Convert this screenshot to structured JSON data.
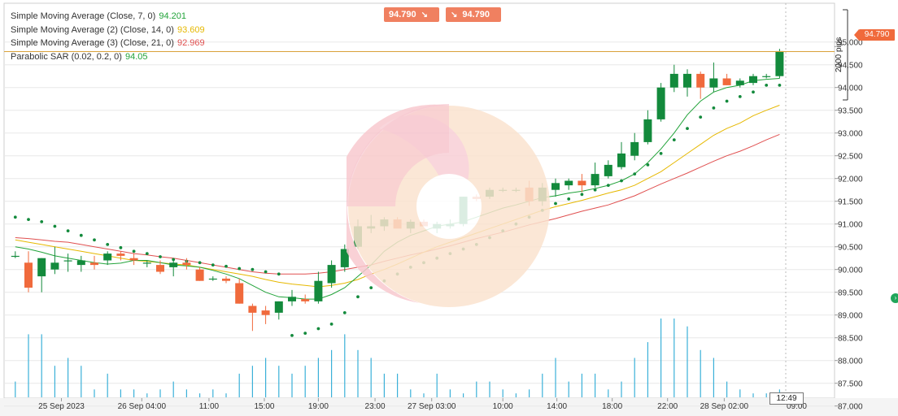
{
  "legend": [
    {
      "label": "Simple Moving Average (Close, 7, 0)",
      "value": "94.201",
      "color": "#22a33a"
    },
    {
      "label": "Simple Moving Average (2) (Close, 14, 0)",
      "value": "93.609",
      "color": "#e6b800"
    },
    {
      "label": "Simple Moving Average (3) (Close, 21, 0)",
      "value": "92.969",
      "color": "#e05050"
    },
    {
      "label": "Parabolic SAR (0.02, 0.2, 0)",
      "value": "94.05",
      "color": "#22a33a"
    }
  ],
  "trade": {
    "sell_price": "94.790",
    "buy_price": "94.790"
  },
  "current_price": "94.790",
  "current_price_value": 94.79,
  "pips_label": "2000 pips",
  "time_marker": "12:49",
  "chart_data": {
    "type": "candlestick",
    "ylim": [
      86.85,
      95.2
    ],
    "y_ticks": [
      "95.000",
      "94.500",
      "94.000",
      "93.500",
      "93.000",
      "92.500",
      "92.000",
      "91.500",
      "91.000",
      "90.500",
      "90.000",
      "89.500",
      "89.000",
      "88.500",
      "88.000",
      "87.500",
      "87.000"
    ],
    "y_tick_values": [
      95,
      94.5,
      94,
      93.5,
      93,
      92.5,
      92,
      91.5,
      91,
      90.5,
      90,
      89.5,
      89,
      88.5,
      88,
      87.5,
      87
    ],
    "x_ticks": [
      {
        "label": "25 Sep 2023",
        "i": 3.5
      },
      {
        "label": "26 Sep 04:00",
        "i": 9.6
      },
      {
        "label": "11:00",
        "i": 14.7
      },
      {
        "label": "15:00",
        "i": 18.9
      },
      {
        "label": "19:00",
        "i": 23.0
      },
      {
        "label": "23:00",
        "i": 27.3
      },
      {
        "label": "27 Sep 03:00",
        "i": 31.6
      },
      {
        "label": "10:00",
        "i": 37.0
      },
      {
        "label": "14:00",
        "i": 41.1
      },
      {
        "label": "18:00",
        "i": 45.3
      },
      {
        "label": "22:00",
        "i": 49.5
      },
      {
        "label": "28 Sep 02:00",
        "i": 53.8
      },
      {
        "label": "09:00",
        "i": 59.3
      }
    ],
    "colors": {
      "up": "#138a3c",
      "down": "#f06a3c",
      "sma7": "#22a33a",
      "sma14": "#e6b800",
      "sma21": "#e05050",
      "sar": "#138a3c",
      "volume": "#3ab0d8",
      "grid": "#e8e8e8",
      "current": "#d9a23a"
    },
    "candles": [
      {
        "o": 90.3,
        "h": 90.4,
        "l": 90.25,
        "c": 90.3
      },
      {
        "o": 90.15,
        "h": 90.4,
        "l": 89.5,
        "c": 89.6
      },
      {
        "o": 89.85,
        "h": 90.25,
        "l": 89.5,
        "c": 90.25
      },
      {
        "o": 90.0,
        "h": 90.5,
        "l": 89.9,
        "c": 90.15
      },
      {
        "o": 90.2,
        "h": 90.35,
        "l": 89.95,
        "c": 90.2
      },
      {
        "o": 90.1,
        "h": 90.3,
        "l": 89.95,
        "c": 90.2
      },
      {
        "o": 90.15,
        "h": 90.3,
        "l": 90.0,
        "c": 90.1
      },
      {
        "o": 90.2,
        "h": 90.4,
        "l": 90.1,
        "c": 90.35
      },
      {
        "o": 90.35,
        "h": 90.4,
        "l": 90.2,
        "c": 90.3
      },
      {
        "o": 90.25,
        "h": 90.35,
        "l": 90.1,
        "c": 90.2
      },
      {
        "o": 90.15,
        "h": 90.2,
        "l": 90.05,
        "c": 90.15
      },
      {
        "o": 90.1,
        "h": 90.2,
        "l": 89.9,
        "c": 89.95
      },
      {
        "o": 90.05,
        "h": 90.2,
        "l": 89.85,
        "c": 90.15
      },
      {
        "o": 90.15,
        "h": 90.25,
        "l": 90.0,
        "c": 90.1
      },
      {
        "o": 90.0,
        "h": 90.05,
        "l": 89.75,
        "c": 89.75
      },
      {
        "o": 89.8,
        "h": 89.85,
        "l": 89.75,
        "c": 89.8
      },
      {
        "o": 89.8,
        "h": 89.85,
        "l": 89.7,
        "c": 89.75
      },
      {
        "o": 89.7,
        "h": 89.8,
        "l": 89.25,
        "c": 89.25
      },
      {
        "o": 89.2,
        "h": 89.25,
        "l": 88.65,
        "c": 89.05
      },
      {
        "o": 89.1,
        "h": 89.2,
        "l": 88.8,
        "c": 89.0
      },
      {
        "o": 89.05,
        "h": 89.3,
        "l": 88.9,
        "c": 89.3
      },
      {
        "o": 89.3,
        "h": 89.55,
        "l": 89.2,
        "c": 89.4
      },
      {
        "o": 89.35,
        "h": 89.45,
        "l": 89.25,
        "c": 89.3
      },
      {
        "o": 89.3,
        "h": 89.95,
        "l": 89.25,
        "c": 89.75
      },
      {
        "o": 89.7,
        "h": 90.2,
        "l": 89.6,
        "c": 90.1
      },
      {
        "o": 90.05,
        "h": 90.55,
        "l": 89.95,
        "c": 90.45
      },
      {
        "o": 90.5,
        "h": 91.1,
        "l": 90.45,
        "c": 90.95
      },
      {
        "o": 90.9,
        "h": 91.2,
        "l": 90.8,
        "c": 90.95
      },
      {
        "o": 90.95,
        "h": 91.15,
        "l": 90.85,
        "c": 91.1
      },
      {
        "o": 91.1,
        "h": 91.15,
        "l": 90.95,
        "c": 90.9
      },
      {
        "o": 90.9,
        "h": 91.1,
        "l": 90.8,
        "c": 91.05
      },
      {
        "o": 91.05,
        "h": 91.1,
        "l": 90.95,
        "c": 90.95
      },
      {
        "o": 90.9,
        "h": 91.05,
        "l": 90.8,
        "c": 91.0
      },
      {
        "o": 90.95,
        "h": 91.1,
        "l": 90.9,
        "c": 91.0
      },
      {
        "o": 91.0,
        "h": 91.6,
        "l": 90.95,
        "c": 91.6
      },
      {
        "o": 91.6,
        "h": 91.65,
        "l": 91.5,
        "c": 91.55
      },
      {
        "o": 91.6,
        "h": 91.8,
        "l": 91.55,
        "c": 91.75
      },
      {
        "o": 91.75,
        "h": 91.8,
        "l": 91.7,
        "c": 91.75
      },
      {
        "o": 91.75,
        "h": 91.8,
        "l": 91.7,
        "c": 91.75
      },
      {
        "o": 91.8,
        "h": 91.95,
        "l": 91.4,
        "c": 91.5
      },
      {
        "o": 91.5,
        "h": 91.9,
        "l": 91.4,
        "c": 91.8
      },
      {
        "o": 91.75,
        "h": 92.0,
        "l": 91.6,
        "c": 91.9
      },
      {
        "o": 91.85,
        "h": 92.0,
        "l": 91.75,
        "c": 91.95
      },
      {
        "o": 91.95,
        "h": 92.1,
        "l": 91.7,
        "c": 91.85
      },
      {
        "o": 91.85,
        "h": 92.35,
        "l": 91.8,
        "c": 92.1
      },
      {
        "o": 92.05,
        "h": 92.4,
        "l": 92.0,
        "c": 92.3
      },
      {
        "o": 92.25,
        "h": 92.8,
        "l": 92.2,
        "c": 92.55
      },
      {
        "o": 92.5,
        "h": 93.0,
        "l": 92.4,
        "c": 92.8
      },
      {
        "o": 92.8,
        "h": 93.5,
        "l": 92.75,
        "c": 93.3
      },
      {
        "o": 93.3,
        "h": 94.1,
        "l": 93.25,
        "c": 94.0
      },
      {
        "o": 94.0,
        "h": 94.5,
        "l": 93.9,
        "c": 94.3
      },
      {
        "o": 94.0,
        "h": 94.4,
        "l": 93.8,
        "c": 94.3
      },
      {
        "o": 94.3,
        "h": 94.35,
        "l": 93.75,
        "c": 94.0
      },
      {
        "o": 94.0,
        "h": 94.55,
        "l": 93.9,
        "c": 94.2
      },
      {
        "o": 94.2,
        "h": 94.3,
        "l": 94.05,
        "c": 94.05
      },
      {
        "o": 94.05,
        "h": 94.2,
        "l": 94.0,
        "c": 94.15
      },
      {
        "o": 94.1,
        "h": 94.3,
        "l": 94.05,
        "c": 94.25
      },
      {
        "o": 94.25,
        "h": 94.3,
        "l": 94.2,
        "c": 94.25
      },
      {
        "o": 94.25,
        "h": 94.85,
        "l": 94.2,
        "c": 94.8
      }
    ],
    "volume": [
      0.2,
      0.8,
      0.8,
      0.4,
      0.5,
      0.4,
      0.1,
      0.3,
      0.1,
      0.1,
      0.05,
      0.1,
      0.2,
      0.1,
      0.05,
      0.1,
      0.05,
      0.3,
      0.4,
      0.5,
      0.4,
      0.3,
      0.4,
      0.5,
      0.6,
      0.8,
      0.6,
      0.5,
      0.3,
      0.3,
      0.1,
      0.05,
      0.3,
      0.1,
      0.05,
      0.2,
      0.2,
      0.1,
      0.05,
      0.1,
      0.3,
      0.5,
      0.2,
      0.3,
      0.3,
      0.1,
      0.2,
      0.5,
      0.7,
      1.0,
      1.0,
      0.9,
      0.6,
      0.5,
      0.2,
      0.1,
      0.05,
      0.05,
      0.1
    ],
    "sma7": [
      90.5,
      90.45,
      90.38,
      90.3,
      90.25,
      90.2,
      90.15,
      90.12,
      90.14,
      90.2,
      90.2,
      90.15,
      90.1,
      90.08,
      90.05,
      89.98,
      89.9,
      89.8,
      89.65,
      89.5,
      89.4,
      89.38,
      89.35,
      89.35,
      89.45,
      89.6,
      89.85,
      90.1,
      90.4,
      90.6,
      90.75,
      90.85,
      90.95,
      91.0,
      91.05,
      91.15,
      91.25,
      91.35,
      91.42,
      91.5,
      91.58,
      91.62,
      91.68,
      91.72,
      91.78,
      91.85,
      91.95,
      92.1,
      92.35,
      92.65,
      93.0,
      93.4,
      93.7,
      93.9,
      94.0,
      94.05,
      94.15,
      94.18,
      94.2
    ],
    "sma14": [
      90.65,
      90.6,
      90.55,
      90.5,
      90.45,
      90.4,
      90.35,
      90.3,
      90.25,
      90.2,
      90.18,
      90.15,
      90.12,
      90.1,
      90.05,
      90.0,
      89.95,
      89.9,
      89.85,
      89.78,
      89.72,
      89.68,
      89.65,
      89.62,
      89.65,
      89.7,
      89.78,
      89.9,
      90.0,
      90.12,
      90.25,
      90.38,
      90.5,
      90.6,
      90.7,
      90.8,
      90.9,
      91.0,
      91.1,
      91.2,
      91.3,
      91.38,
      91.45,
      91.52,
      91.6,
      91.68,
      91.75,
      91.85,
      92.0,
      92.15,
      92.35,
      92.55,
      92.75,
      92.95,
      93.1,
      93.22,
      93.38,
      93.5,
      93.61
    ],
    "sma21": [
      90.7,
      90.68,
      90.65,
      90.62,
      90.6,
      90.55,
      90.5,
      90.45,
      90.4,
      90.35,
      90.32,
      90.28,
      90.25,
      90.2,
      90.15,
      90.1,
      90.05,
      90.0,
      89.95,
      89.92,
      89.9,
      89.9,
      89.9,
      89.92,
      89.95,
      90.0,
      90.05,
      90.1,
      90.18,
      90.25,
      90.32,
      90.38,
      90.45,
      90.52,
      90.6,
      90.68,
      90.75,
      90.82,
      90.9,
      90.98,
      91.05,
      91.12,
      91.2,
      91.28,
      91.35,
      91.42,
      91.52,
      91.62,
      91.75,
      91.88,
      92.0,
      92.12,
      92.25,
      92.38,
      92.5,
      92.6,
      92.72,
      92.85,
      92.97
    ],
    "sar": [
      91.15,
      91.1,
      91.05,
      90.95,
      90.85,
      90.75,
      90.65,
      90.55,
      90.48,
      90.4,
      90.35,
      90.28,
      90.22,
      90.18,
      90.15,
      90.1,
      90.07,
      90.02,
      90.0,
      89.95,
      89.9,
      88.55,
      88.6,
      88.7,
      88.8,
      89.05,
      89.4,
      89.6,
      89.75,
      89.9,
      90.05,
      90.15,
      90.25,
      90.35,
      90.45,
      90.55,
      90.7,
      90.85,
      91.0,
      91.15,
      91.3,
      91.45,
      91.55,
      91.65,
      91.75,
      91.85,
      91.95,
      92.1,
      92.3,
      92.55,
      92.85,
      93.1,
      93.35,
      93.55,
      93.7,
      93.8,
      93.9,
      94.05,
      94.05
    ]
  }
}
